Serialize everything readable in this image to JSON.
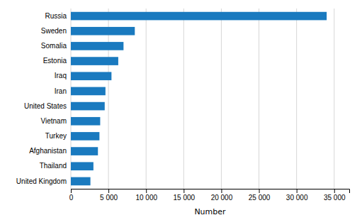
{
  "chart_data": {
    "type": "bar",
    "orientation": "horizontal",
    "categories": [
      "Russia",
      "Sweden",
      "Somalia",
      "Estonia",
      "Iraq",
      "Iran",
      "United States",
      "Vietnam",
      "Turkey",
      "Afghanistan",
      "Thailand",
      "United Kingdom"
    ],
    "values": [
      34000,
      8500,
      7000,
      6300,
      5400,
      4600,
      4500,
      3900,
      3800,
      3600,
      3000,
      2600
    ],
    "color": "#1a7abf",
    "xlabel": "Number",
    "xlim": [
      0,
      37000
    ],
    "xticks": [
      0,
      {
        "value": 5000,
        "label": "5 000"
      },
      {
        "value": 10000,
        "label": "10 000"
      },
      {
        "value": 15000,
        "label": "15 000"
      },
      {
        "value": 20000,
        "label": "20 000"
      },
      {
        "value": 25000,
        "label": "25 000"
      },
      {
        "value": 30000,
        "label": "30 000"
      },
      {
        "value": 35000,
        "label": "35 000"
      }
    ],
    "grid": true
  }
}
